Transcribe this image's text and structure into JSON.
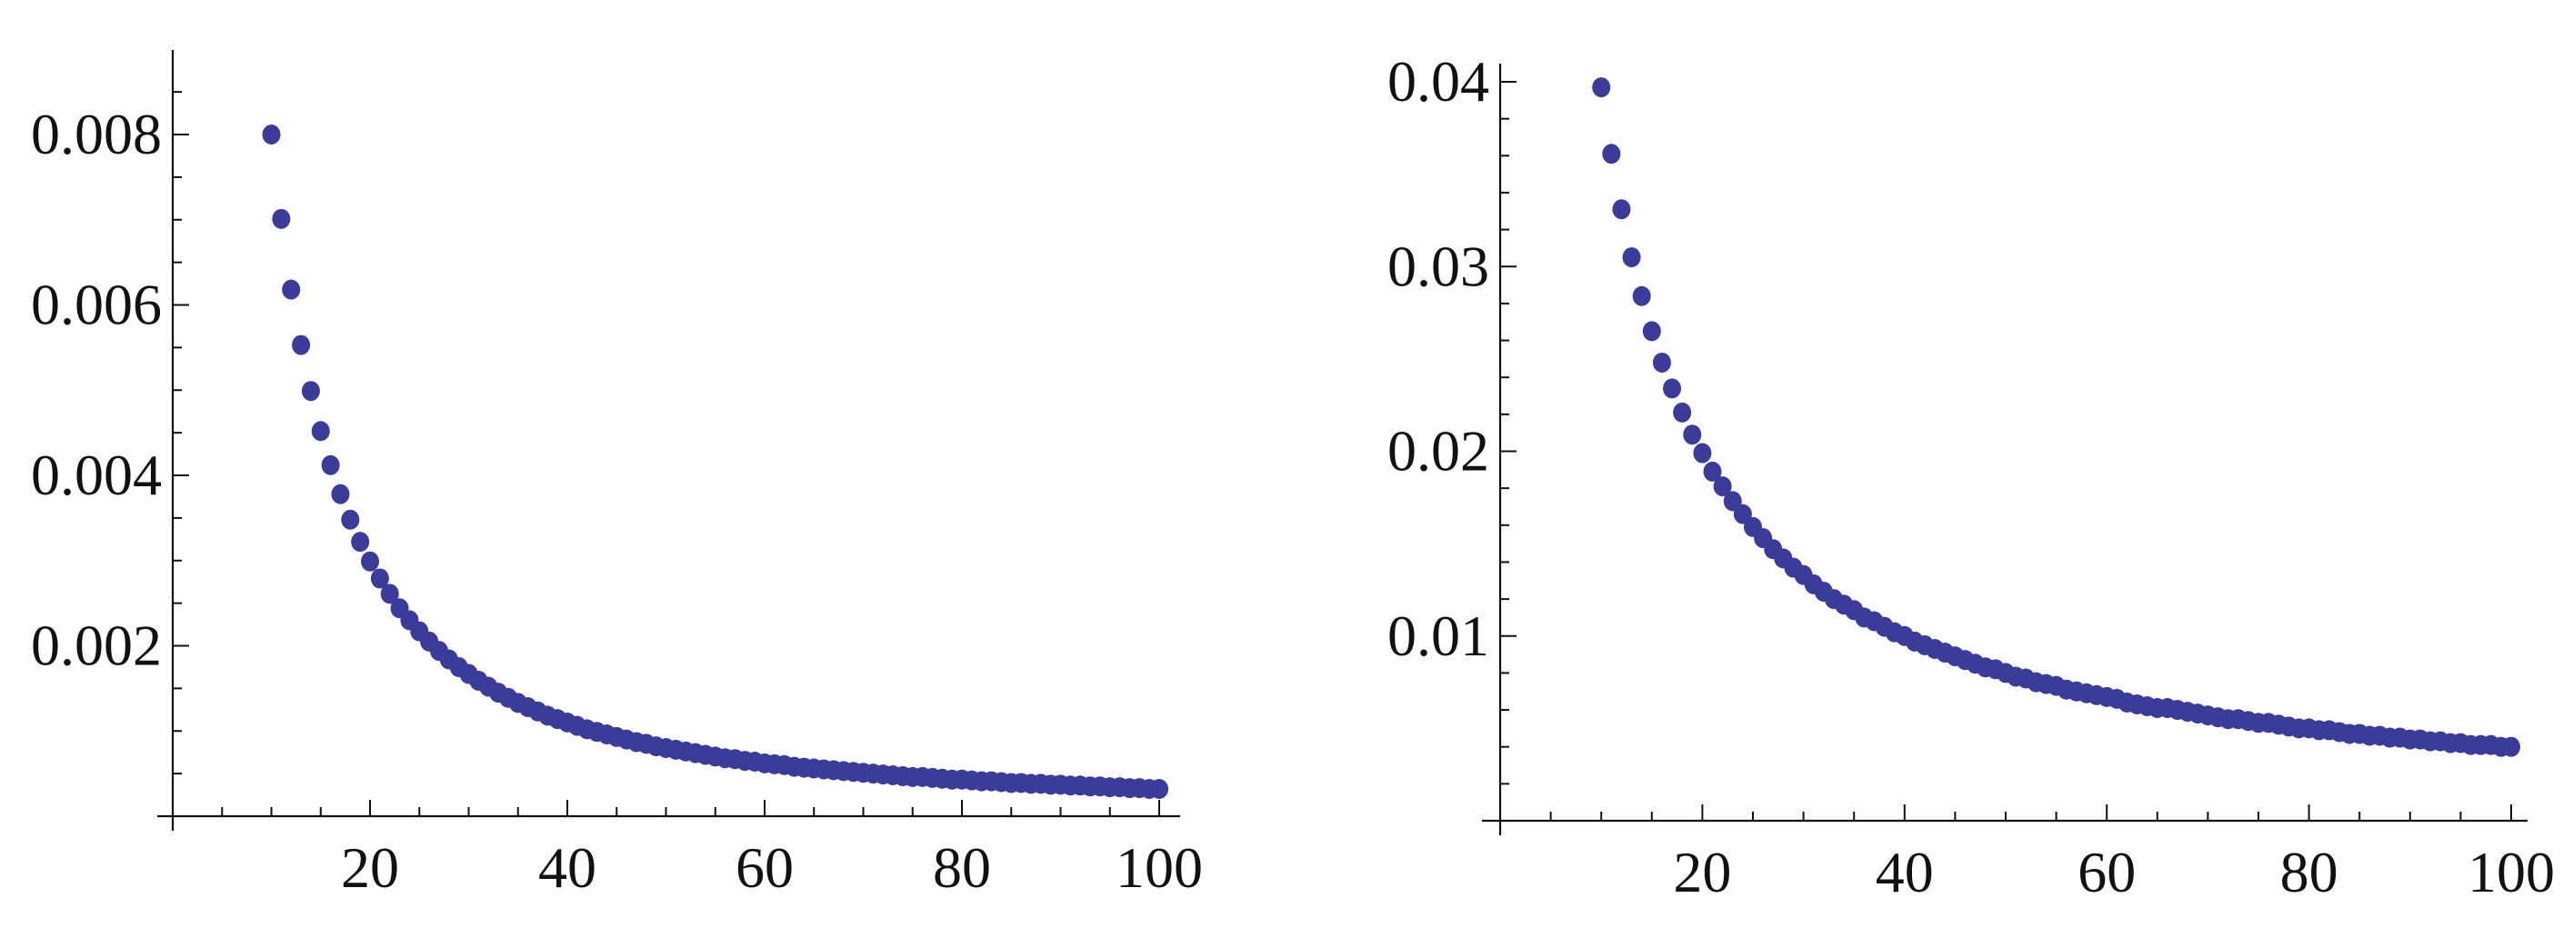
{
  "chart_data": [
    {
      "type": "scatter",
      "title": "",
      "xlabel": "",
      "ylabel": "",
      "xlim": [
        0,
        100
      ],
      "ylim": [
        0,
        0.0091
      ],
      "x_ticks": [
        20,
        40,
        60,
        80,
        100
      ],
      "x_tick_labels": [
        "20",
        "40",
        "60",
        "80",
        "100"
      ],
      "y_ticks": [
        0.002,
        0.004,
        0.006,
        0.008
      ],
      "y_tick_labels": [
        "0.002",
        "0.004",
        "0.006",
        "0.008"
      ],
      "grid": false,
      "legend": "none",
      "color": "#3b3b9a",
      "series": [
        {
          "x": [
            10,
            11,
            12,
            13,
            14,
            15,
            16,
            17,
            18,
            19,
            20,
            21,
            22,
            23,
            24,
            25,
            26,
            27,
            28,
            29,
            30,
            31,
            32,
            33,
            34,
            35,
            36,
            37,
            38,
            39,
            40,
            41,
            42,
            43,
            44,
            45,
            46,
            47,
            48,
            49,
            50,
            51,
            52,
            53,
            54,
            55,
            56,
            57,
            58,
            59,
            60,
            61,
            62,
            63,
            64,
            65,
            66,
            67,
            68,
            69,
            70,
            71,
            72,
            73,
            74,
            75,
            76,
            77,
            78,
            79,
            80,
            81,
            82,
            83,
            84,
            85,
            86,
            87,
            88,
            89,
            90,
            91,
            92,
            93,
            94,
            95,
            96,
            97,
            98,
            99,
            100
          ],
          "y": [
            0.008,
            0.00701,
            0.00618,
            0.00553,
            0.00499,
            0.00452,
            0.00412,
            0.00378,
            0.00348,
            0.00322,
            0.00299,
            0.00279,
            0.00261,
            0.00244,
            0.0023,
            0.00217,
            0.00205,
            0.00194,
            0.00184,
            0.00175,
            0.00167,
            0.00159,
            0.00152,
            0.00145,
            0.00139,
            0.00133,
            0.00128,
            0.00123,
            0.00118,
            0.00114,
            0.0011,
            0.00106,
            0.00102,
            0.00099,
            0.00096,
            0.00093,
            0.0009,
            0.00087,
            0.00085,
            0.00082,
            0.0008,
            0.00078,
            0.00076,
            0.00074,
            0.00072,
            0.0007,
            0.00068,
            0.00067,
            0.00065,
            0.00064,
            0.00062,
            0.00061,
            0.0006,
            0.00058,
            0.00057,
            0.00056,
            0.00055,
            0.00054,
            0.00053,
            0.00052,
            0.00051,
            0.0005,
            0.00049,
            0.00048,
            0.00047,
            0.00046,
            0.00046,
            0.00045,
            0.00044,
            0.00043,
            0.00043,
            0.00042,
            0.00041,
            0.00041,
            0.0004,
            0.00039,
            0.00039,
            0.00038,
            0.00038,
            0.00037,
            0.00037,
            0.00036,
            0.00036,
            0.00035,
            0.00035,
            0.00034,
            0.00034,
            0.00033,
            0.00033,
            0.00032,
            0.00032
          ]
        }
      ]
    },
    {
      "type": "scatter",
      "title": "",
      "xlabel": "",
      "ylabel": "",
      "xlim": [
        0,
        100
      ],
      "ylim": [
        0,
        0.0405
      ],
      "x_ticks": [
        20,
        40,
        60,
        80,
        100
      ],
      "x_tick_labels": [
        "20",
        "40",
        "60",
        "80",
        "100"
      ],
      "y_ticks": [
        0.01,
        0.02,
        0.03,
        0.04
      ],
      "y_tick_labels": [
        "0.01",
        "0.02",
        "0.03",
        "0.04"
      ],
      "grid": false,
      "legend": "none",
      "color": "#3b3b9a",
      "series": [
        {
          "x": [
            10,
            11,
            12,
            13,
            14,
            15,
            16,
            17,
            18,
            19,
            20,
            21,
            22,
            23,
            24,
            25,
            26,
            27,
            28,
            29,
            30,
            31,
            32,
            33,
            34,
            35,
            36,
            37,
            38,
            39,
            40,
            41,
            42,
            43,
            44,
            45,
            46,
            47,
            48,
            49,
            50,
            51,
            52,
            53,
            54,
            55,
            56,
            57,
            58,
            59,
            60,
            61,
            62,
            63,
            64,
            65,
            66,
            67,
            68,
            69,
            70,
            71,
            72,
            73,
            74,
            75,
            76,
            77,
            78,
            79,
            80,
            81,
            82,
            83,
            84,
            85,
            86,
            87,
            88,
            89,
            90,
            91,
            92,
            93,
            94,
            95,
            96,
            97,
            98,
            99,
            100
          ],
          "y": [
            0.0397,
            0.0361,
            0.0331,
            0.0305,
            0.0284,
            0.0265,
            0.0248,
            0.0234,
            0.0221,
            0.0209,
            0.0199,
            0.0189,
            0.0181,
            0.0173,
            0.0166,
            0.0159,
            0.0153,
            0.0147,
            0.0142,
            0.0137,
            0.0133,
            0.0128,
            0.0124,
            0.012,
            0.0117,
            0.0114,
            0.011,
            0.0108,
            0.0105,
            0.0102,
            0.01,
            0.0097,
            0.0095,
            0.0093,
            0.0091,
            0.0089,
            0.0087,
            0.0085,
            0.0083,
            0.0082,
            0.008,
            0.0078,
            0.0077,
            0.0075,
            0.0074,
            0.0073,
            0.0071,
            0.007,
            0.0069,
            0.0068,
            0.0067,
            0.0066,
            0.0064,
            0.0063,
            0.0062,
            0.0061,
            0.0061,
            0.006,
            0.0059,
            0.0058,
            0.0057,
            0.0056,
            0.0055,
            0.0055,
            0.0054,
            0.0053,
            0.0053,
            0.0052,
            0.0051,
            0.005,
            0.005,
            0.0049,
            0.0049,
            0.0048,
            0.0047,
            0.0047,
            0.0046,
            0.0046,
            0.0045,
            0.0045,
            0.0044,
            0.0044,
            0.0043,
            0.0043,
            0.0042,
            0.0042,
            0.0041,
            0.0041,
            0.0041,
            0.004,
            0.004
          ]
        }
      ]
    }
  ]
}
